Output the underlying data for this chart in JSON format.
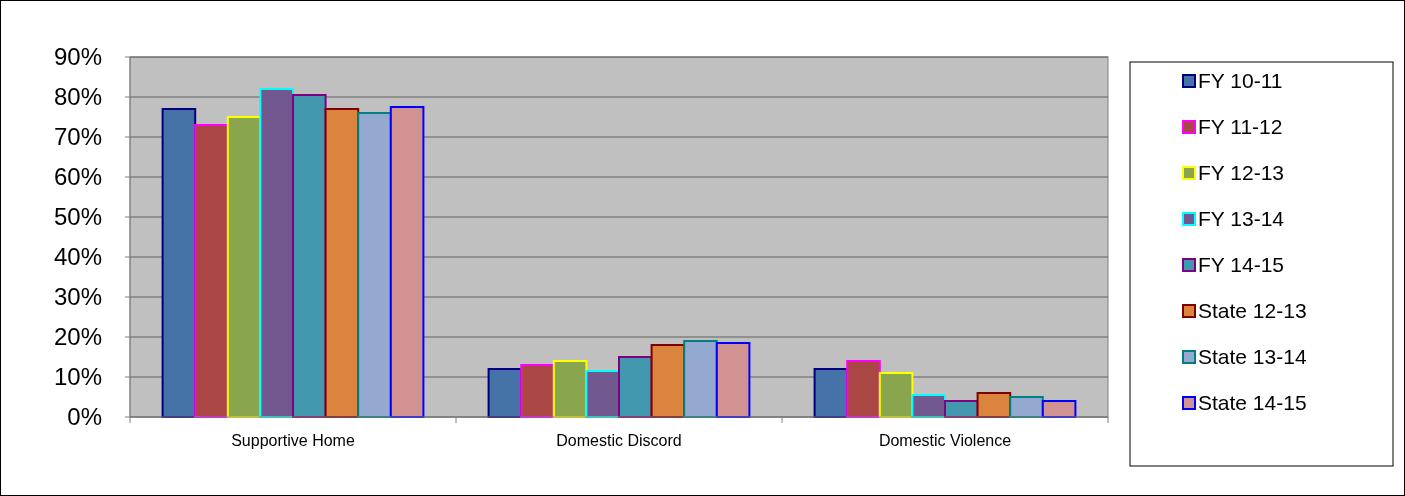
{
  "chart_data": {
    "type": "bar",
    "categories": [
      "Supportive Home",
      "Domestic Discord",
      "Domestic Violence"
    ],
    "series": [
      {
        "name": "FY 10-11",
        "color": "#4572a7",
        "values": [
          77,
          12,
          12
        ]
      },
      {
        "name": "FY 11-12",
        "color": "#aa4643",
        "values": [
          73,
          13,
          14
        ]
      },
      {
        "name": "FY 12-13",
        "color": "#89a54e",
        "values": [
          75,
          14,
          11
        ]
      },
      {
        "name": "FY 13-14",
        "color": "#71588f",
        "values": [
          82,
          11.5,
          5.5
        ]
      },
      {
        "name": "FY 14-15",
        "color": "#4198af",
        "values": [
          80.5,
          15,
          4
        ]
      },
      {
        "name": "State 12-13",
        "color": "#db843d",
        "values": [
          77,
          18,
          6
        ]
      },
      {
        "name": "State 13-14",
        "color": "#93a9cf",
        "values": [
          76,
          19,
          5
        ]
      },
      {
        "name": "State 14-15",
        "color": "#d19392",
        "values": [
          77.5,
          18.5,
          4
        ]
      }
    ],
    "ylim": [
      0,
      90
    ],
    "yticks": [
      {
        "value": 0,
        "label": "0%"
      },
      {
        "value": 10,
        "label": "10%"
      },
      {
        "value": 20,
        "label": "20%"
      },
      {
        "value": 30,
        "label": "30%"
      },
      {
        "value": 40,
        "label": "40%"
      },
      {
        "value": 50,
        "label": "50%"
      },
      {
        "value": 60,
        "label": "60%"
      },
      {
        "value": 70,
        "label": "70%"
      },
      {
        "value": 80,
        "label": "80%"
      },
      {
        "value": 90,
        "label": "90%"
      }
    ],
    "grid": "y",
    "legend": "right"
  }
}
